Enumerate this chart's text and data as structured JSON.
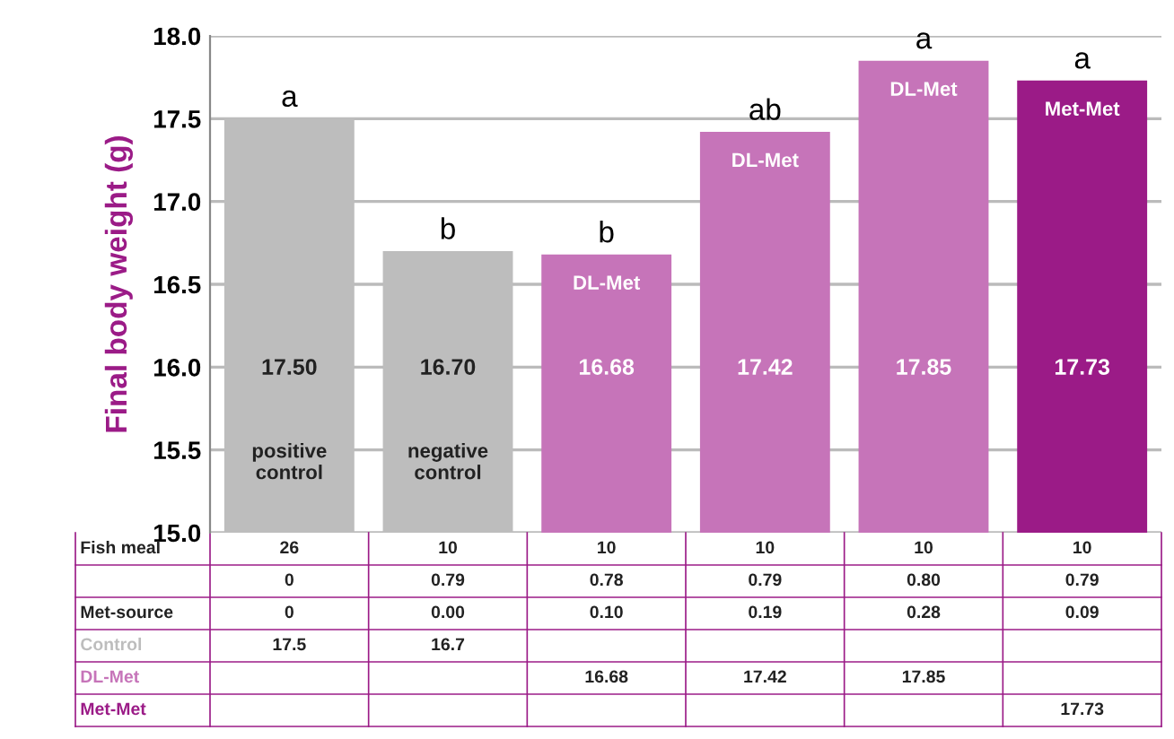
{
  "chart_data": {
    "type": "bar",
    "ylabel": "Final body weight (g)",
    "categories": [
      "positive\ncontrol",
      "negative\ncontrol",
      "DL-Met",
      "DL-Met",
      "DL-Met",
      "Met-Met"
    ],
    "series": [
      {
        "name": "Control",
        "color": "#bdbdbd",
        "values": [
          17.5,
          16.7,
          null,
          null,
          null,
          null
        ],
        "value_labels": [
          "17.50",
          "16.70",
          null,
          null,
          null,
          null
        ]
      },
      {
        "name": "DL-Met",
        "color": "#c674b9",
        "values": [
          null,
          null,
          16.68,
          17.42,
          17.85,
          null
        ],
        "value_labels": [
          null,
          null,
          "16.68",
          "17.42",
          "17.85",
          null
        ]
      },
      {
        "name": "Met-Met",
        "color": "#9b1b87",
        "values": [
          null,
          null,
          null,
          null,
          null,
          17.73
        ],
        "value_labels": [
          null,
          null,
          null,
          null,
          null,
          "17.73"
        ]
      }
    ],
    "annotations": [
      "a",
      "b",
      "b",
      "ab",
      "a",
      "a",
      "Fish meal",
      "26",
      "10",
      "10",
      "10",
      "10",
      "10",
      null,
      "0",
      "0.79",
      "0.78",
      "0.79",
      "0.80",
      "0.79",
      "Met-source",
      "0",
      "0.00",
      "0.10",
      "0.19",
      "0.28",
      "0.09",
      null,
      "17.5",
      "16.7",
      null,
      null,
      null,
      null,
      null,
      null,
      null,
      "16.68",
      "17.42",
      "17.85",
      null,
      null,
      null,
      null,
      null,
      null,
      null,
      "17.73"
    ],
    "ylim": [
      15,
      18
    ],
    "yticks": [
      {
        "value": 15,
        "label": "15.0"
      },
      {
        "value": 15.5,
        "label": "15.5"
      },
      {
        "value": 16,
        "label": "16.0"
      },
      {
        "value": 16.5,
        "label": "16.5"
      },
      {
        "value": 17,
        "label": "17.0"
      },
      {
        "value": 17.5,
        "label": "17.5"
      },
      {
        "value": 18,
        "label": "18.0"
      }
    ],
    "grid": "y"
  }
}
